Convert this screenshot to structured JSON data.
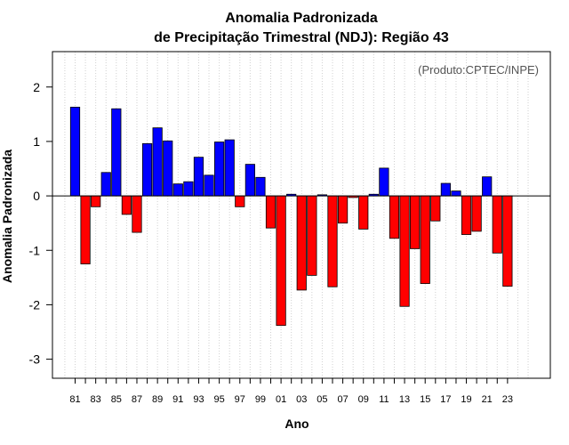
{
  "chart_data": {
    "type": "bar",
    "title": "Anomalia Padronizada",
    "subtitle": "de Precipitação Trimestral (NDJ): Região 43",
    "xlabel": "Ano",
    "ylabel": "Anomalia Padronizada",
    "credit": "(Produto:CPTEC/INPE)",
    "ylim": [
      -3.35,
      2.65
    ],
    "yticks": [
      -3,
      -2,
      -1,
      0,
      1,
      2
    ],
    "grid": "vertical dotted",
    "colors": {
      "positive": "#0000ff",
      "negative": "#ff0000"
    },
    "categories": [
      "1981",
      "1982",
      "1983",
      "1984",
      "1985",
      "1986",
      "1987",
      "1988",
      "1989",
      "1990",
      "1991",
      "1992",
      "1993",
      "1994",
      "1995",
      "1996",
      "1997",
      "1998",
      "1999",
      "2000",
      "2001",
      "2002",
      "2003",
      "2004",
      "2005",
      "2006",
      "2007",
      "2008",
      "2009",
      "2010",
      "2011",
      "2012",
      "2013",
      "2014",
      "2015",
      "2016",
      "2017",
      "2018",
      "2019",
      "2020",
      "2021",
      "2022",
      "2023"
    ],
    "tick_labels": [
      "81",
      "83",
      "85",
      "87",
      "89",
      "91",
      "93",
      "95",
      "97",
      "99",
      "01",
      "03",
      "05",
      "07",
      "09",
      "11",
      "13",
      "15",
      "17",
      "19",
      "21",
      "23"
    ],
    "values": [
      1.63,
      -1.25,
      -0.2,
      0.43,
      1.6,
      -0.34,
      -0.67,
      0.96,
      1.25,
      1.01,
      0.22,
      0.26,
      0.71,
      0.38,
      0.99,
      1.03,
      -0.2,
      0.58,
      0.34,
      -0.59,
      -2.38,
      0.03,
      -1.73,
      -1.46,
      0.02,
      -1.67,
      -0.5,
      -0.03,
      -0.61,
      0.03,
      0.51,
      -0.78,
      -2.03,
      -0.97,
      -1.61,
      -0.46,
      0.23,
      0.09,
      -0.71,
      -0.65,
      0.35,
      -1.05,
      -1.66
    ]
  }
}
